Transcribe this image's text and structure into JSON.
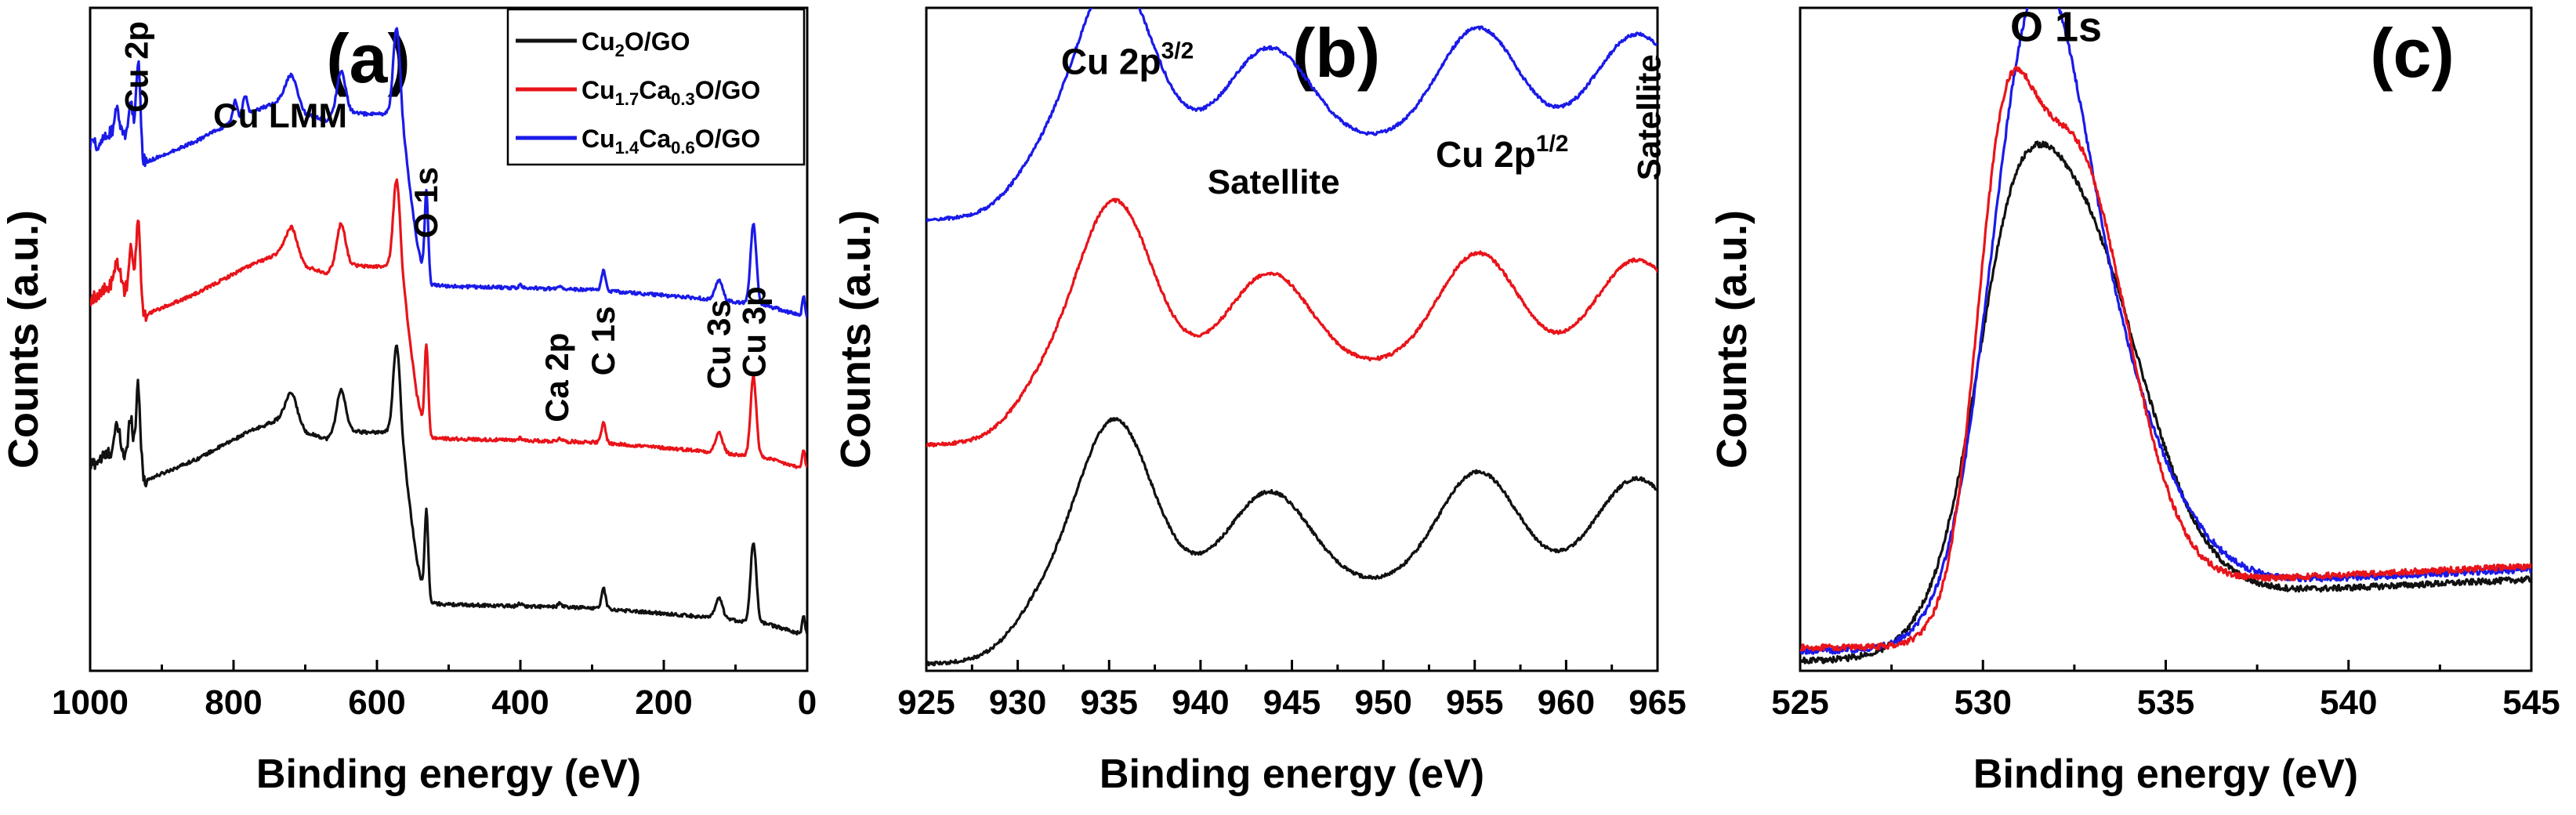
{
  "colors": {
    "black": "#111111",
    "red": "#e8141a",
    "blue": "#1a1ae8"
  },
  "chart_data": [
    {
      "id": "a",
      "type": "line",
      "panel_label": "(a)",
      "xlabel": "Binding energy (eV)",
      "ylabel": "Counts (a.u.)",
      "xlim": [
        1000,
        0
      ],
      "x_reversed": true,
      "ylim": [
        0,
        100
      ],
      "xticks": [
        "1000",
        "800",
        "600",
        "400",
        "200",
        "0"
      ],
      "legend_position": "top-right",
      "legend": [
        {
          "formula": [
            [
              "Cu",
              "n"
            ],
            [
              "2",
              "sub"
            ],
            [
              "O/GO",
              "n"
            ]
          ],
          "color": "black"
        },
        {
          "formula": [
            [
              "Cu",
              "n"
            ],
            [
              "1.7",
              "sub"
            ],
            [
              "Ca",
              "n"
            ],
            [
              "0.3",
              "sub"
            ],
            [
              "O/GO",
              "n"
            ]
          ],
          "color": "red"
        },
        {
          "formula": [
            [
              "Cu",
              "n"
            ],
            [
              "1.4",
              "sub"
            ],
            [
              "Ca",
              "n"
            ],
            [
              "0.6",
              "sub"
            ],
            [
              "O/GO",
              "n"
            ]
          ],
          "color": "blue"
        }
      ],
      "annotations": [
        {
          "text": "Cu 2p",
          "x": 936,
          "y": 98,
          "rotate": true
        },
        {
          "text": "Cu LMM",
          "x": 735,
          "y": 82
        },
        {
          "text": "O 1s",
          "x": 532,
          "y": 76,
          "rotate": true
        },
        {
          "text": "Ca 2p",
          "x": 350,
          "y": 51,
          "rotate": true
        },
        {
          "text": "C 1s",
          "x": 285,
          "y": 55,
          "rotate": true
        },
        {
          "text": "Cu 3s",
          "x": 124,
          "y": 56,
          "rotate": true
        },
        {
          "text": "Cu 3p",
          "x": 75,
          "y": 58,
          "rotate": true
        }
      ],
      "series": [
        {
          "name": "Cu2O/GO",
          "color": "black",
          "background": 5,
          "shape": [
            [
              1000,
              26
            ],
            [
              970,
              28
            ],
            [
              945,
              27
            ],
            [
              935,
              24
            ],
            [
              931,
              23
            ],
            [
              925,
              23.6
            ],
            [
              850,
              27
            ],
            [
              780,
              31
            ],
            [
              735,
              33
            ],
            [
              718,
              34
            ],
            [
              700,
              31
            ],
            [
              670,
              30
            ],
            [
              650,
              31.5
            ],
            [
              620,
              31
            ],
            [
              600,
              31
            ],
            [
              575,
              31
            ],
            [
              560,
              25
            ],
            [
              545,
              12
            ],
            [
              535,
              7
            ],
            [
              525,
              5.2
            ],
            [
              500,
              5
            ],
            [
              300,
              4.5
            ],
            [
              150,
              3.2
            ],
            [
              100,
              2.6
            ],
            [
              60,
              2.2
            ],
            [
              10,
              0.6
            ],
            [
              0,
              0.3
            ]
          ],
          "peaks": [
            [
              962,
              4,
              4
            ],
            [
              943,
              7,
              3
            ],
            [
              933,
              15,
              3
            ],
            [
              720,
              3,
              8
            ],
            [
              650,
              6,
              6
            ],
            [
              572,
              14,
              5
            ],
            [
              531,
              13,
              2.5
            ],
            [
              400,
              0.4,
              3
            ],
            [
              345,
              0.5,
              3
            ],
            [
              284,
              3,
              3
            ],
            [
              123,
              3,
              5
            ],
            [
              75,
              12,
              4
            ],
            [
              5,
              3,
              2
            ]
          ]
        },
        {
          "name": "Cu1.7Ca0.3O/GO",
          "color": "red",
          "background": 30,
          "shape": [
            [
              1000,
              26
            ],
            [
              970,
              28
            ],
            [
              945,
              27
            ],
            [
              935,
              24
            ],
            [
              931,
              23
            ],
            [
              925,
              23.6
            ],
            [
              850,
              27
            ],
            [
              780,
              31
            ],
            [
              735,
              33
            ],
            [
              718,
              34
            ],
            [
              700,
              31
            ],
            [
              670,
              30
            ],
            [
              650,
              31.5
            ],
            [
              620,
              31
            ],
            [
              600,
              31
            ],
            [
              575,
              31
            ],
            [
              560,
              25
            ],
            [
              545,
              12
            ],
            [
              535,
              7
            ],
            [
              525,
              5.2
            ],
            [
              500,
              5
            ],
            [
              300,
              4.5
            ],
            [
              150,
              3.2
            ],
            [
              100,
              2.6
            ],
            [
              60,
              2.2
            ],
            [
              10,
              0.6
            ],
            [
              0,
              0.3
            ]
          ],
          "peaks": [
            [
              962,
              4,
              4
            ],
            [
              943,
              7,
              3
            ],
            [
              933,
              15,
              3
            ],
            [
              720,
              3,
              8
            ],
            [
              650,
              6,
              6
            ],
            [
              572,
              14,
              5
            ],
            [
              531,
              13,
              2.5
            ],
            [
              400,
              0.4,
              3
            ],
            [
              345,
              0.5,
              3
            ],
            [
              284,
              3,
              3
            ],
            [
              123,
              3,
              5
            ],
            [
              75,
              12,
              4
            ],
            [
              5,
              3,
              2
            ]
          ]
        },
        {
          "name": "Cu1.4Ca0.6O/GO",
          "color": "blue",
          "background": 53,
          "shape": [
            [
              1000,
              26
            ],
            [
              970,
              28
            ],
            [
              945,
              27
            ],
            [
              935,
              24
            ],
            [
              931,
              23
            ],
            [
              925,
              23.6
            ],
            [
              850,
              27
            ],
            [
              780,
              31
            ],
            [
              735,
              33
            ],
            [
              718,
              34
            ],
            [
              700,
              31
            ],
            [
              670,
              30
            ],
            [
              650,
              31.5
            ],
            [
              620,
              31
            ],
            [
              600,
              31
            ],
            [
              575,
              31
            ],
            [
              560,
              25
            ],
            [
              545,
              12
            ],
            [
              535,
              7
            ],
            [
              525,
              5.2
            ],
            [
              500,
              5
            ],
            [
              300,
              4.5
            ],
            [
              150,
              3.2
            ],
            [
              100,
              2.6
            ],
            [
              60,
              2.2
            ],
            [
              10,
              0.6
            ],
            [
              0,
              0.3
            ]
          ],
          "peaks": [
            [
              962,
              4,
              4
            ],
            [
              943,
              7,
              3
            ],
            [
              933,
              15,
              3
            ],
            [
              798,
              3,
              3
            ],
            [
              784,
              3,
              3
            ],
            [
              720,
              3,
              8
            ],
            [
              650,
              6,
              6
            ],
            [
              572,
              14,
              5
            ],
            [
              531,
              13,
              2.5
            ],
            [
              400,
              0.4,
              3
            ],
            [
              345,
              0.5,
              3
            ],
            [
              284,
              3,
              3
            ],
            [
              123,
              3,
              5
            ],
            [
              75,
              12,
              4
            ],
            [
              5,
              3,
              2
            ]
          ]
        }
      ]
    },
    {
      "id": "b",
      "type": "line",
      "panel_label": "(b)",
      "xlabel": "Binding energy (eV)",
      "ylabel": "Counts (a.u.)",
      "xlim": [
        925,
        965
      ],
      "ylim": [
        0,
        100
      ],
      "xticks": [
        "925",
        "930",
        "935",
        "940",
        "945",
        "950",
        "955",
        "960",
        "965"
      ],
      "annotations": [
        {
          "base": "Cu 2p",
          "sup": "3/2",
          "x": 936,
          "y": 90
        },
        {
          "text": "Satellite",
          "x": 944,
          "y": 72
        },
        {
          "base": "Cu 2p",
          "sup": "1/2",
          "x": 956.5,
          "y": 76
        },
        {
          "text": "Satellite",
          "x": 964.5,
          "y": 93,
          "rotate": true
        }
      ],
      "series": [
        {
          "name": "Cu2O/GO",
          "color": "black",
          "offset": 0,
          "baseline": 1,
          "sigmoid_center": 930,
          "sigmoid_height": 12,
          "sigmoid_width": 1.0,
          "peaks": [
            [
              935.3,
              25,
              2.0
            ],
            [
              943.8,
              14,
              2.2
            ],
            [
              955.2,
              17,
              2.2
            ],
            [
              963.9,
              16,
              2.3
            ]
          ]
        },
        {
          "name": "Cu1.7Ca0.3O/GO",
          "color": "red",
          "offset": 33,
          "baseline": 1,
          "sigmoid_center": 930,
          "sigmoid_height": 12,
          "sigmoid_width": 1.0,
          "peaks": [
            [
              935.3,
              25,
              2.0
            ],
            [
              943.8,
              14,
              2.2
            ],
            [
              955.2,
              17,
              2.2
            ],
            [
              963.9,
              16,
              2.3
            ]
          ]
        },
        {
          "name": "Cu1.4Ca0.6O/GO",
          "color": "blue",
          "offset": 67,
          "baseline": 1,
          "sigmoid_center": 930,
          "sigmoid_height": 12,
          "sigmoid_width": 1.0,
          "peaks": [
            [
              935.3,
              25,
              2.0
            ],
            [
              943.8,
              14,
              2.2
            ],
            [
              955.2,
              17,
              2.2
            ],
            [
              963.9,
              16,
              2.3
            ]
          ]
        }
      ]
    },
    {
      "id": "c",
      "type": "line",
      "panel_label": "(c)",
      "xlabel": "Binding energy (eV)",
      "ylabel": "Counts (a.u.)",
      "xlim": [
        525,
        545
      ],
      "ylim": [
        0,
        100
      ],
      "xticks": [
        "525",
        "530",
        "535",
        "540",
        "545"
      ],
      "annotations": [
        {
          "text": "O 1s",
          "x": 532,
          "y": 95
        }
      ],
      "series": [
        {
          "name": "Cu2O/GO",
          "color": "black",
          "baseline": 1.5,
          "sigmoid_center": 530.2,
          "sigmoid_height": 10,
          "sigmoid_width": 0.4,
          "slope_start": 536,
          "slope": 2.3,
          "peaks": [
            [
              530.6,
              20,
              1.0
            ],
            [
              532.3,
              60,
              1.9
            ]
          ]
        },
        {
          "name": "Cu1.4Ca0.6O/GO",
          "color": "blue",
          "baseline": 3,
          "sigmoid_center": 530.0,
          "sigmoid_height": 10,
          "sigmoid_width": 0.4,
          "slope_start": 536,
          "slope": 2.3,
          "peaks": [
            [
              531.4,
              60,
              1.2
            ],
            [
              532.7,
              38,
              1.9
            ]
          ]
        },
        {
          "name": "Cu1.7Ca0.3O/GO",
          "color": "red",
          "baseline": 3.5,
          "sigmoid_center": 530.0,
          "sigmoid_height": 10,
          "sigmoid_width": 0.4,
          "slope_start": 536,
          "slope": 2.3,
          "peaks": [
            [
              530.5,
              44,
              0.75
            ],
            [
              532.4,
              66,
              1.5
            ]
          ]
        }
      ]
    }
  ]
}
